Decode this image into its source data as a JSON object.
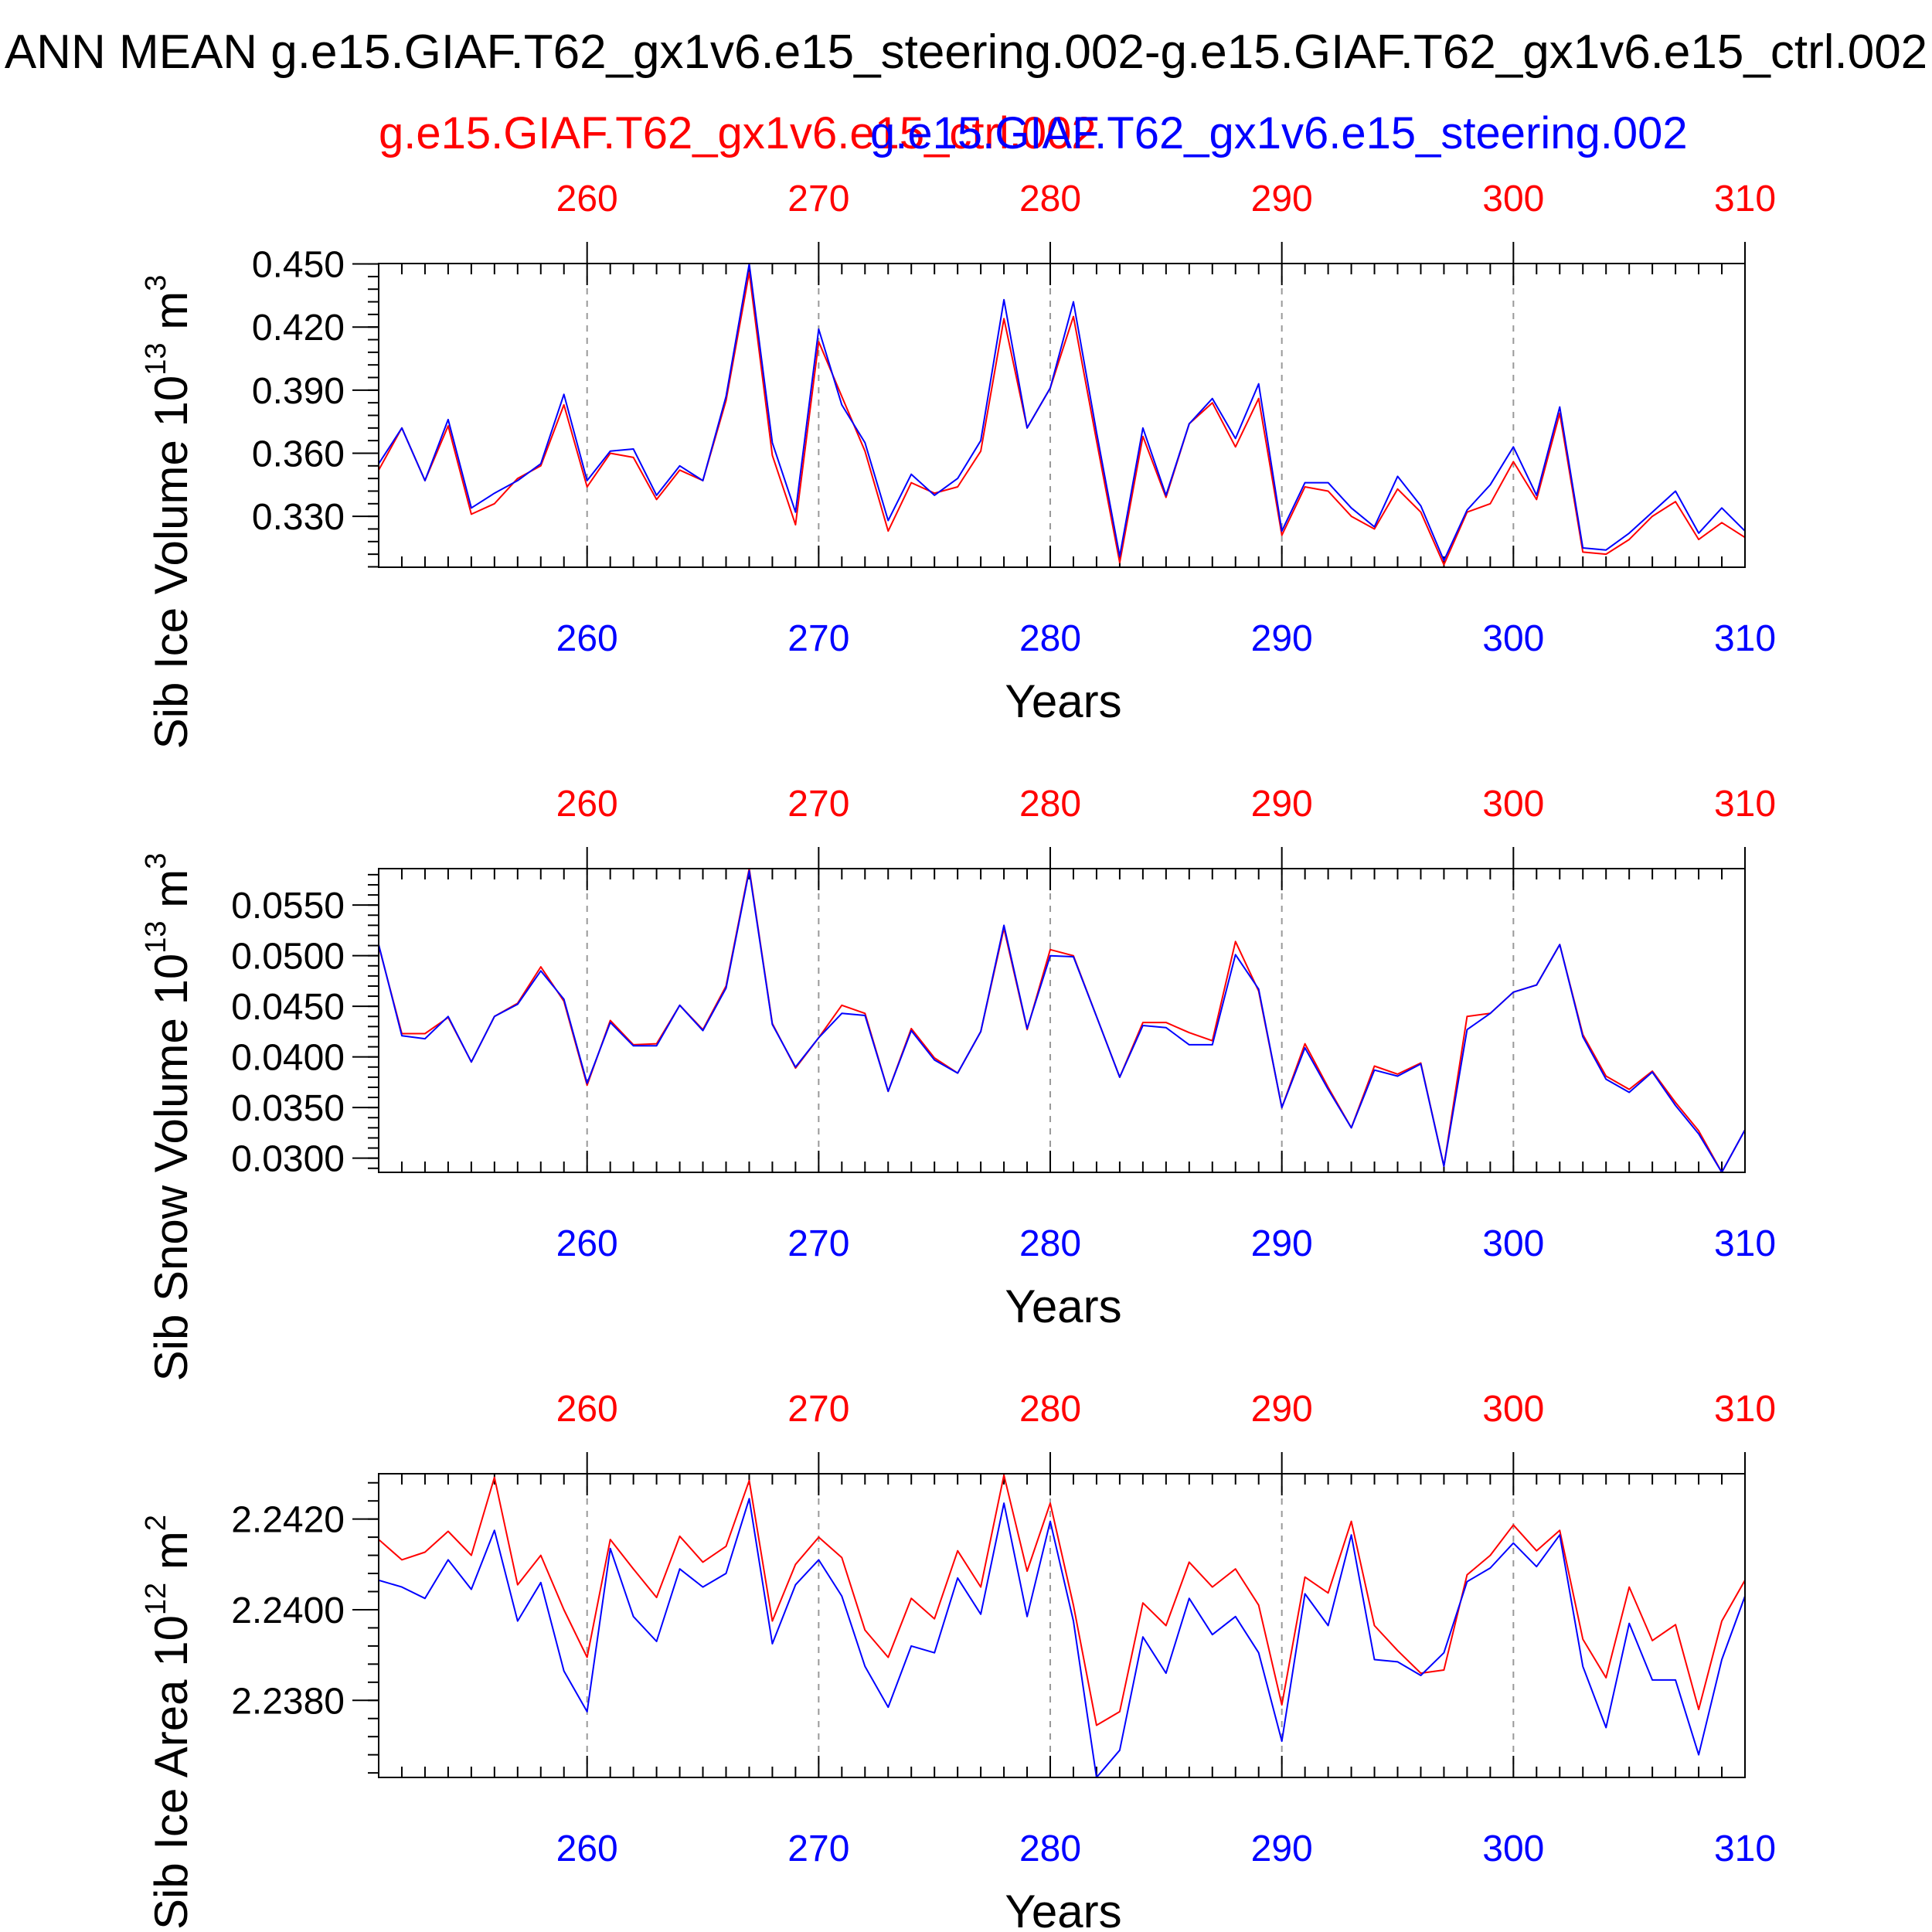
{
  "title": "ANN MEAN g.e15.GIAF.T62_gx1v6.e15_steering.002-g.e15.GIAF.T62_gx1v6.e15_ctrl.002",
  "legend": {
    "ctrl_label": "g.e15.GIAF.T62_gx1v6.e15_ctrl.002",
    "steering_label": "g.e15.GIAF.T62_gx1v6.e15_steering.002"
  },
  "colors": {
    "ctrl": "#ff0000",
    "steering": "#0000ff",
    "axis": "#000000",
    "grid": "#999999"
  },
  "chart_data": [
    {
      "type": "line",
      "ylabel_main": "Sib Ice Volume 10",
      "ylabel_exp": "13",
      "ylabel_unit": " m",
      "ylabel_unit_exp": "3",
      "xlabel": "Years",
      "xlim": [
        251,
        310
      ],
      "ylim": [
        0.3058,
        0.4502
      ],
      "yticks": [
        0.33,
        0.36,
        0.39,
        0.42,
        0.45
      ],
      "yticklabels": [
        "0.330",
        "0.360",
        "0.390",
        "0.420",
        "0.450"
      ],
      "xticks": [
        260,
        270,
        280,
        290,
        300,
        310
      ],
      "xticklabels": [
        "260",
        "270",
        "280",
        "290",
        "300",
        "310"
      ],
      "x": [
        251,
        252,
        253,
        254,
        255,
        256,
        257,
        258,
        259,
        260,
        261,
        262,
        263,
        264,
        265,
        266,
        267,
        268,
        269,
        270,
        271,
        272,
        273,
        274,
        275,
        276,
        277,
        278,
        279,
        280,
        281,
        282,
        283,
        284,
        285,
        286,
        287,
        288,
        289,
        290,
        291,
        292,
        293,
        294,
        295,
        296,
        297,
        298,
        299,
        300,
        301,
        302,
        303,
        304,
        305,
        306,
        307,
        308,
        309,
        310
      ],
      "series": [
        {
          "name": "g.e15.GIAF.T62_gx1v6.e15_ctrl.002",
          "values": [
            0.352,
            0.372,
            0.347,
            0.373,
            0.331,
            0.336,
            0.348,
            0.354,
            0.383,
            0.344,
            0.36,
            0.358,
            0.338,
            0.352,
            0.347,
            0.385,
            0.446,
            0.359,
            0.326,
            0.413,
            0.387,
            0.361,
            0.323,
            0.346,
            0.341,
            0.344,
            0.361,
            0.424,
            0.372,
            0.391,
            0.425,
            0.366,
            0.308,
            0.368,
            0.339,
            0.374,
            0.384,
            0.363,
            0.386,
            0.321,
            0.344,
            0.342,
            0.33,
            0.324,
            0.343,
            0.332,
            0.307,
            0.332,
            0.336,
            0.356,
            0.338,
            0.379,
            0.313,
            0.312,
            0.319,
            0.33,
            0.337,
            0.319,
            0.327,
            0.32
          ]
        },
        {
          "name": "g.e15.GIAF.T62_gx1v6.e15_steering.002",
          "values": [
            0.355,
            0.372,
            0.347,
            0.376,
            0.334,
            0.341,
            0.347,
            0.355,
            0.388,
            0.347,
            0.361,
            0.362,
            0.34,
            0.354,
            0.347,
            0.387,
            0.45,
            0.365,
            0.332,
            0.419,
            0.383,
            0.365,
            0.328,
            0.35,
            0.34,
            0.348,
            0.366,
            0.433,
            0.372,
            0.391,
            0.432,
            0.37,
            0.311,
            0.372,
            0.34,
            0.374,
            0.386,
            0.367,
            0.393,
            0.323,
            0.346,
            0.346,
            0.334,
            0.325,
            0.349,
            0.335,
            0.309,
            0.333,
            0.345,
            0.363,
            0.34,
            0.382,
            0.315,
            0.314,
            0.322,
            0.332,
            0.342,
            0.322,
            0.334,
            0.323
          ]
        }
      ]
    },
    {
      "type": "line",
      "ylabel_main": "Sib Snow Volume 10",
      "ylabel_exp": "13",
      "ylabel_unit": " m",
      "ylabel_unit_exp": "3",
      "xlabel": "Years",
      "xlim": [
        251,
        310
      ],
      "ylim": [
        0.0286,
        0.0586
      ],
      "yticks": [
        0.03,
        0.035,
        0.04,
        0.045,
        0.05,
        0.055
      ],
      "yticklabels": [
        "0.0300",
        "0.0350",
        "0.0400",
        "0.0450",
        "0.0500",
        "0.0550"
      ],
      "xticks": [
        260,
        270,
        280,
        290,
        300,
        310
      ],
      "xticklabels": [
        "260",
        "270",
        "280",
        "290",
        "300",
        "310"
      ],
      "x": [
        251,
        252,
        253,
        254,
        255,
        256,
        257,
        258,
        259,
        260,
        261,
        262,
        263,
        264,
        265,
        266,
        267,
        268,
        269,
        270,
        271,
        272,
        273,
        274,
        275,
        276,
        277,
        278,
        279,
        280,
        281,
        282,
        283,
        284,
        285,
        286,
        287,
        288,
        289,
        290,
        291,
        292,
        293,
        294,
        295,
        296,
        297,
        298,
        299,
        300,
        301,
        302,
        303,
        304,
        305,
        306,
        307,
        308,
        309,
        310
      ],
      "series": [
        {
          "name": "g.e15.GIAF.T62_gx1v6.e15_ctrl.002",
          "values": [
            0.051,
            0.0423,
            0.0423,
            0.0439,
            0.0395,
            0.044,
            0.0453,
            0.0489,
            0.0455,
            0.0372,
            0.0436,
            0.0412,
            0.0413,
            0.0451,
            0.0427,
            0.047,
            0.0586,
            0.0433,
            0.0389,
            0.0419,
            0.0451,
            0.0443,
            0.0366,
            0.0428,
            0.0399,
            0.0384,
            0.0425,
            0.0527,
            0.0427,
            0.0506,
            0.05,
            0.044,
            0.038,
            0.0434,
            0.0434,
            0.0424,
            0.0416,
            0.0514,
            0.0465,
            0.035,
            0.0413,
            0.037,
            0.033,
            0.0391,
            0.0383,
            0.0394,
            0.0292,
            0.044,
            0.0443,
            0.0464,
            0.0471,
            0.0511,
            0.0422,
            0.0381,
            0.0368,
            0.0386,
            0.0355,
            0.0327,
            0.0286,
            0.0328
          ]
        },
        {
          "name": "g.e15.GIAF.T62_gx1v6.e15_steering.002",
          "values": [
            0.0511,
            0.0421,
            0.0418,
            0.044,
            0.0395,
            0.044,
            0.0452,
            0.0485,
            0.0457,
            0.0374,
            0.0434,
            0.0411,
            0.0411,
            0.0451,
            0.0426,
            0.0468,
            0.0584,
            0.0432,
            0.039,
            0.0419,
            0.0443,
            0.0441,
            0.0366,
            0.0426,
            0.0397,
            0.0384,
            0.0425,
            0.053,
            0.0428,
            0.05,
            0.0499,
            0.044,
            0.038,
            0.0431,
            0.0429,
            0.0412,
            0.0412,
            0.0501,
            0.0467,
            0.035,
            0.0409,
            0.0368,
            0.033,
            0.0387,
            0.0381,
            0.0393,
            0.0292,
            0.0427,
            0.0443,
            0.0464,
            0.0471,
            0.0511,
            0.042,
            0.0378,
            0.0365,
            0.0385,
            0.0352,
            0.0324,
            0.0286,
            0.0328
          ]
        }
      ]
    },
    {
      "type": "line",
      "ylabel_main": "Sib Ice Area 10",
      "ylabel_exp": "12",
      "ylabel_unit": " m",
      "ylabel_unit_exp": "2",
      "xlabel": "Years",
      "xlim": [
        251,
        310
      ],
      "ylim": [
        2.2363,
        2.243
      ],
      "yticks": [
        2.238,
        2.24,
        2.242
      ],
      "yticklabels": [
        "2.2380",
        "2.2400",
        "2.2420"
      ],
      "xticks": [
        260,
        270,
        280,
        290,
        300,
        310
      ],
      "xticklabels": [
        "260",
        "270",
        "280",
        "290",
        "300",
        "310"
      ],
      "x": [
        251,
        252,
        253,
        254,
        255,
        256,
        257,
        258,
        259,
        260,
        261,
        262,
        263,
        264,
        265,
        266,
        267,
        268,
        269,
        270,
        271,
        272,
        273,
        274,
        275,
        276,
        277,
        278,
        279,
        280,
        281,
        282,
        283,
        284,
        285,
        286,
        287,
        288,
        289,
        290,
        291,
        292,
        293,
        294,
        295,
        296,
        297,
        298,
        299,
        300,
        301,
        302,
        303,
        304,
        305,
        306,
        307,
        308,
        309,
        310
      ],
      "series": [
        {
          "name": "g.e15.GIAF.T62_gx1v6.e15_ctrl.002",
          "values": [
            2.24155,
            2.2411,
            2.24127,
            2.24173,
            2.2412,
            2.24292,
            2.24055,
            2.2412,
            2.24,
            2.23895,
            2.24155,
            2.2409,
            2.24027,
            2.24162,
            2.24105,
            2.2414,
            2.24285,
            2.23975,
            2.241,
            2.2416,
            2.24115,
            2.23955,
            2.23895,
            2.24025,
            2.2398,
            2.2413,
            2.2405,
            2.24297,
            2.24085,
            2.24235,
            2.2401,
            2.23745,
            2.23775,
            2.24015,
            2.23965,
            2.24105,
            2.2405,
            2.2409,
            2.2401,
            2.2379,
            2.24072,
            2.24037,
            2.24195,
            2.23965,
            2.2391,
            2.2386,
            2.23867,
            2.24077,
            2.2412,
            2.24187,
            2.2413,
            2.24175,
            2.23935,
            2.2385,
            2.2405,
            2.23932,
            2.23967,
            2.2378,
            2.23975,
            2.24065
          ]
        },
        {
          "name": "g.e15.GIAF.T62_gx1v6.e15_steering.002",
          "values": [
            2.24065,
            2.2405,
            2.24025,
            2.2411,
            2.24045,
            2.24175,
            2.23975,
            2.2406,
            2.23865,
            2.23775,
            2.24135,
            2.23985,
            2.2393,
            2.2409,
            2.2405,
            2.2408,
            2.24245,
            2.23925,
            2.24055,
            2.2411,
            2.2403,
            2.23875,
            2.23785,
            2.2392,
            2.23905,
            2.2407,
            2.2399,
            2.24235,
            2.23985,
            2.24195,
            2.23975,
            2.2363,
            2.2369,
            2.2394,
            2.2386,
            2.24025,
            2.23945,
            2.23985,
            2.23905,
            2.2371,
            2.24035,
            2.23965,
            2.24165,
            2.2389,
            2.23885,
            2.23855,
            2.23905,
            2.24062,
            2.24092,
            2.24147,
            2.24095,
            2.24165,
            2.23875,
            2.2374,
            2.2397,
            2.23845,
            2.23845,
            2.2368,
            2.2389,
            2.2403
          ]
        }
      ]
    }
  ]
}
